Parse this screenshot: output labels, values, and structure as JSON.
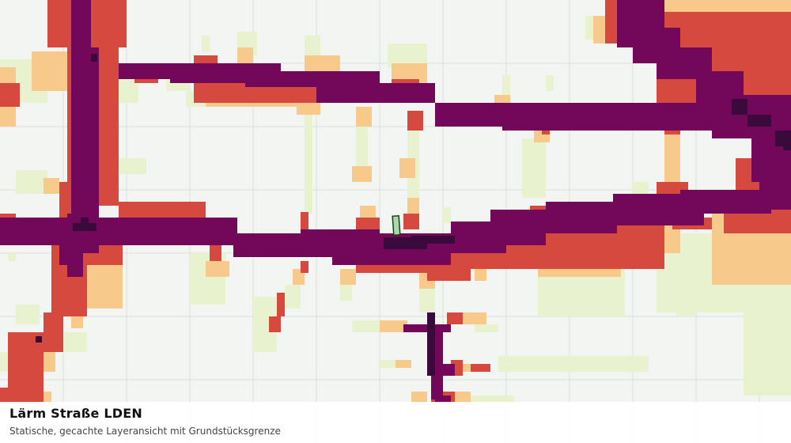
{
  "map": {
    "layer_title": "Lärm Straße LDEN",
    "layer_subtitle": "Statische, gecachte Layeransicht mit Grundstücksgrenze",
    "layers": [
      {
        "name": "base-map",
        "color": "#f3f5f2"
      },
      {
        "name": "grid",
        "color": "#dcdfdb"
      },
      {
        "name": "noise-class-1",
        "color": "#e8f2cf"
      },
      {
        "name": "noise-class-2",
        "color": "#f7c98a"
      },
      {
        "name": "noise-class-3",
        "color": "#d5493f"
      },
      {
        "name": "noise-class-4",
        "color": "#73075a"
      },
      {
        "name": "noise-class-5",
        "color": "#3b0a3c"
      },
      {
        "name": "parcel-boundary",
        "color": "#7fbf7f"
      }
    ]
  }
}
